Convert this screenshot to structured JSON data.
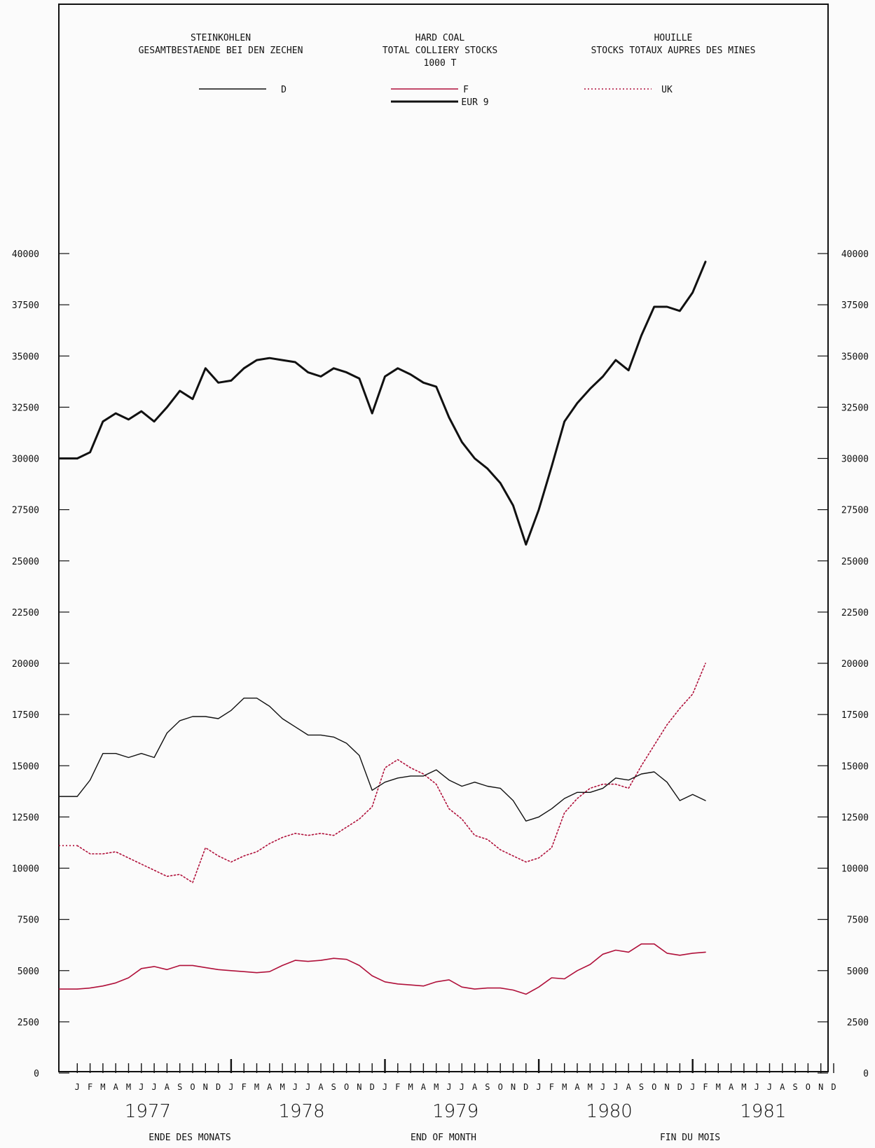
{
  "chart_data": {
    "type": "line",
    "title_blocks": [
      [
        "STEINKOHLEN",
        "GESAMTBESTAENDE BEI DEN ZECHEN"
      ],
      [
        "HARD COAL",
        "TOTAL COLLIERY STOCKS",
        "1000 T"
      ],
      [
        "HOUILLE",
        "STOCKS TOTAUX AUPRES DES MINES"
      ]
    ],
    "xlabels": [
      "ENDE DES MONATS",
      "END OF MONTH",
      "FIN DU MOIS"
    ],
    "years": [
      "1977",
      "1978",
      "1979",
      "1980",
      "1981"
    ],
    "month_labels": [
      "J",
      "F",
      "M",
      "A",
      "M",
      "J",
      "J",
      "A",
      "S",
      "O",
      "N",
      "D"
    ],
    "ylim": [
      0,
      40000
    ],
    "yticks": [
      "0",
      "2500",
      "5000",
      "7500",
      "10000",
      "12500",
      "15000",
      "17500",
      "20000",
      "22500",
      "25000",
      "27500",
      "30000",
      "32500",
      "35000",
      "37500",
      "40000"
    ],
    "x_range_months": [
      1,
      60
    ],
    "legend": [
      {
        "series": "D",
        "label": "D",
        "color": "#111111",
        "style": "thin"
      },
      {
        "series": "F",
        "label": "F",
        "color": "#b0103a",
        "style": "solid"
      },
      {
        "series": "UK",
        "label": "UK",
        "color": "#b0103a",
        "style": "dotted"
      },
      {
        "series": "EUR 9",
        "label": "EUR 9",
        "color": "#111111",
        "style": "thick"
      }
    ],
    "series": [
      {
        "name": "EUR 9",
        "x_start": "1977-01",
        "values": [
          30000,
          30300,
          31800,
          32200,
          31900,
          32300,
          31800,
          32500,
          33300,
          32900,
          34400,
          33700,
          33800,
          34400,
          34800,
          34900,
          34800,
          34700,
          34200,
          34000,
          34400,
          34200,
          33900,
          32200,
          34000,
          34400,
          34100,
          33700,
          33500,
          32000,
          30800,
          30000,
          29500,
          28800,
          27700,
          25800,
          27500,
          29600,
          31800,
          32700,
          33400,
          34000,
          34800,
          34300,
          36000,
          37400,
          37400,
          37200,
          38100,
          39600
        ]
      },
      {
        "name": "D",
        "x_start": "1977-01",
        "values": [
          13500,
          14300,
          15600,
          15600,
          15400,
          15600,
          15400,
          16600,
          17200,
          17400,
          17400,
          17300,
          17700,
          18300,
          18300,
          17900,
          17300,
          16900,
          16500,
          16500,
          16400,
          16100,
          15500,
          13800,
          14200,
          14400,
          14500,
          14500,
          14800,
          14300,
          14000,
          14200,
          14000,
          13900,
          13300,
          12300,
          12500,
          12900,
          13400,
          13700,
          13700,
          13900,
          14400,
          14300,
          14600,
          14700,
          14200,
          13300,
          13600,
          13300
        ]
      },
      {
        "name": "F",
        "x_start": "1977-01",
        "values": [
          4100,
          4150,
          4250,
          4400,
          4650,
          5100,
          5200,
          5050,
          5250,
          5250,
          5150,
          5050,
          5000,
          4950,
          4900,
          4950,
          5250,
          5500,
          5450,
          5500,
          5600,
          5550,
          5250,
          4750,
          4450,
          4350,
          4300,
          4250,
          4450,
          4550,
          4200,
          4100,
          4150,
          4150,
          4050,
          3850,
          4200,
          4650,
          4600,
          5000,
          5300,
          5800,
          6000,
          5900,
          6300,
          6300,
          5850,
          5750,
          5850,
          5900
        ]
      },
      {
        "name": "UK",
        "x_start": "1977-01",
        "values": [
          11100,
          10700,
          10700,
          10800,
          10500,
          10200,
          9900,
          9600,
          9700,
          9300,
          11000,
          10600,
          10300,
          10600,
          10800,
          11200,
          11500,
          11700,
          11600,
          11700,
          11600,
          12000,
          12400,
          13000,
          14900,
          15300,
          14900,
          14600,
          14100,
          12900,
          12400,
          11600,
          11400,
          10900,
          10600,
          10300,
          10500,
          11000,
          12700,
          13400,
          13900,
          14100,
          14100,
          13900,
          15000,
          16000,
          17000,
          17800,
          18500,
          20000
        ]
      }
    ]
  }
}
